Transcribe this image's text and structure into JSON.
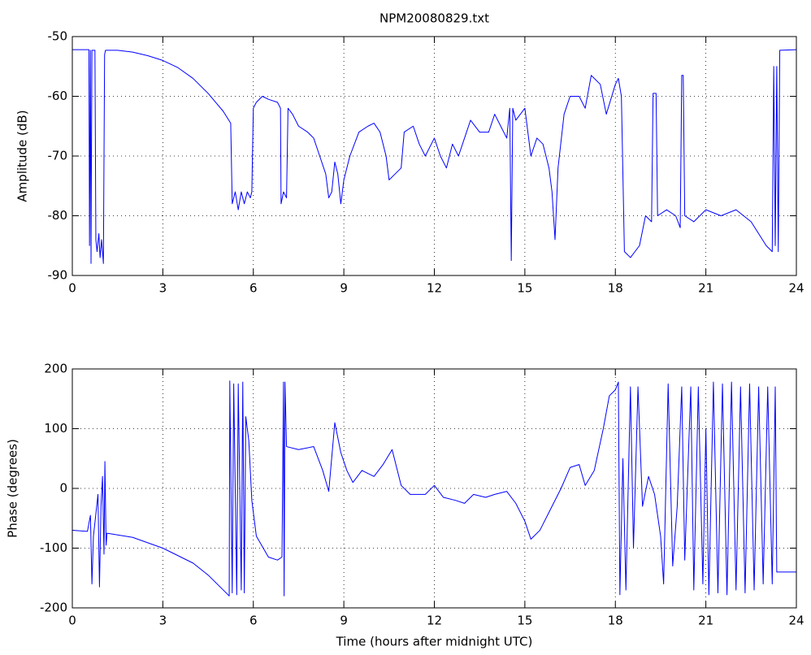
{
  "chart_data": [
    {
      "type": "line",
      "title": "NPM20080829.txt",
      "ylabel": "Amplitude (dB)",
      "color": "#0000ff",
      "grid": true,
      "xlim": [
        0,
        24
      ],
      "xticks": [
        0,
        3,
        6,
        9,
        12,
        15,
        18,
        21,
        24
      ],
      "ylim": [
        -90,
        -50
      ],
      "yticks": [
        -90,
        -80,
        -70,
        -60,
        -50
      ],
      "x": [
        0,
        0.55,
        0.57,
        0.6,
        0.62,
        0.65,
        0.75,
        0.78,
        0.82,
        0.88,
        0.92,
        0.97,
        1.0,
        1.03,
        1.07,
        1.1,
        1.5,
        2.0,
        2.5,
        3.0,
        3.5,
        4.0,
        4.5,
        5.0,
        5.25,
        5.3,
        5.4,
        5.5,
        5.6,
        5.7,
        5.8,
        5.9,
        5.95,
        6.0,
        6.1,
        6.3,
        6.5,
        6.8,
        6.9,
        6.92,
        7.0,
        7.1,
        7.15,
        7.3,
        7.5,
        7.8,
        8.0,
        8.2,
        8.4,
        8.5,
        8.6,
        8.7,
        8.8,
        8.9,
        9.0,
        9.2,
        9.5,
        9.8,
        10.0,
        10.2,
        10.4,
        10.5,
        10.7,
        10.9,
        11.0,
        11.3,
        11.5,
        11.7,
        12.0,
        12.2,
        12.4,
        12.6,
        12.8,
        13.0,
        13.2,
        13.5,
        13.8,
        14.0,
        14.2,
        14.4,
        14.5,
        14.55,
        14.6,
        14.7,
        15.0,
        15.2,
        15.4,
        15.6,
        15.8,
        15.9,
        16.0,
        16.1,
        16.3,
        16.5,
        16.8,
        17.0,
        17.2,
        17.5,
        17.7,
        18.0,
        18.1,
        18.2,
        18.3,
        18.5,
        18.8,
        19.0,
        19.2,
        19.25,
        19.35,
        19.4,
        19.7,
        20.0,
        20.15,
        20.2,
        20.25,
        20.3,
        20.6,
        21.0,
        21.5,
        22.0,
        22.5,
        23.0,
        23.2,
        23.25,
        23.3,
        23.35,
        23.4,
        23.45,
        24
      ],
      "values": [
        -52.2,
        -52.2,
        -85,
        -52.3,
        -88,
        -52.3,
        -52.3,
        -84,
        -86,
        -83,
        -87,
        -84,
        -86,
        -88,
        -53,
        -52.3,
        -52.3,
        -52.6,
        -53.2,
        -54,
        -55.2,
        -57,
        -59.5,
        -62.5,
        -64.5,
        -78,
        -76,
        -79,
        -76,
        -78,
        -76,
        -77,
        -76,
        -62,
        -61,
        -60,
        -60.5,
        -61,
        -62,
        -78,
        -76,
        -77,
        -62,
        -63,
        -65,
        -66,
        -67,
        -70,
        -73,
        -77,
        -76,
        -71,
        -73,
        -78,
        -74,
        -70,
        -66,
        -65,
        -64.5,
        -66,
        -70,
        -74,
        -73,
        -72,
        -66,
        -65,
        -68,
        -70,
        -67,
        -70,
        -72,
        -68,
        -70,
        -67,
        -64,
        -66,
        -66,
        -63,
        -65,
        -67,
        -62,
        -87.5,
        -62,
        -64,
        -62,
        -70,
        -67,
        -68,
        -72,
        -76,
        -84,
        -72,
        -63,
        -60,
        -60,
        -62,
        -56.5,
        -58,
        -63,
        -58,
        -57,
        -60,
        -86,
        -87,
        -85,
        -80,
        -81,
        -59.5,
        -59.5,
        -80,
        -79,
        -80,
        -82,
        -56.5,
        -56.5,
        -80,
        -81,
        -79,
        -80,
        -79,
        -81,
        -85,
        -86,
        -55,
        -85,
        -55,
        -86,
        -52.3,
        -52.2
      ]
    },
    {
      "type": "line",
      "xlabel": "Time (hours after midnight UTC)",
      "ylabel": "Phase (degrees)",
      "color": "#0000ff",
      "grid": true,
      "xlim": [
        0,
        24
      ],
      "xticks": [
        0,
        3,
        6,
        9,
        12,
        15,
        18,
        21,
        24
      ],
      "ylim": [
        -200,
        200
      ],
      "yticks": [
        -200,
        -100,
        0,
        100,
        200
      ],
      "x": [
        0,
        0.5,
        0.6,
        0.65,
        0.7,
        0.85,
        0.9,
        0.95,
        1.0,
        1.05,
        1.08,
        1.12,
        1.15,
        2,
        3,
        4,
        4.5,
        5,
        5.2,
        5.22,
        5.3,
        5.35,
        5.45,
        5.5,
        5.6,
        5.65,
        5.7,
        5.75,
        5.85,
        5.95,
        6.1,
        6.5,
        6.8,
        6.95,
        7.0,
        7.02,
        7.05,
        7.1,
        7.5,
        8,
        8.3,
        8.5,
        8.7,
        8.9,
        9.1,
        9.3,
        9.6,
        10,
        10.3,
        10.6,
        10.9,
        11.2,
        11.7,
        12,
        12.3,
        12.7,
        13,
        13.3,
        13.7,
        14,
        14.4,
        14.7,
        15,
        15.2,
        15.5,
        15.8,
        16.2,
        16.5,
        16.8,
        17.0,
        17.3,
        17.6,
        17.8,
        18.0,
        18.1,
        18.15,
        18.25,
        18.35,
        18.5,
        18.6,
        18.75,
        18.9,
        19.1,
        19.3,
        19.5,
        19.6,
        19.75,
        19.9,
        20.05,
        20.2,
        20.3,
        20.5,
        20.6,
        20.75,
        20.9,
        21.0,
        21.1,
        21.25,
        21.4,
        21.55,
        21.7,
        21.85,
        22,
        22.15,
        22.3,
        22.45,
        22.6,
        22.75,
        22.9,
        23.05,
        23.2,
        23.3,
        23.35,
        24
      ],
      "values": [
        -70,
        -72,
        -45,
        -160,
        -80,
        -10,
        -165,
        -30,
        20,
        -110,
        45,
        -95,
        -75,
        -82,
        -100,
        -125,
        -145,
        -170,
        -180,
        180,
        -175,
        175,
        -178,
        175,
        -170,
        178,
        -175,
        120,
        80,
        -20,
        -80,
        -115,
        -120,
        -115,
        178,
        -180,
        178,
        70,
        65,
        70,
        30,
        -5,
        110,
        60,
        30,
        10,
        30,
        20,
        40,
        65,
        5,
        -10,
        -10,
        5,
        -15,
        -20,
        -25,
        -10,
        -15,
        -10,
        -5,
        -25,
        -55,
        -85,
        -70,
        -40,
        0,
        35,
        40,
        5,
        30,
        100,
        155,
        165,
        178,
        -178,
        50,
        -170,
        170,
        -100,
        170,
        -30,
        20,
        -10,
        -80,
        -160,
        175,
        -130,
        -30,
        170,
        -120,
        170,
        -170,
        170,
        -160,
        100,
        -178,
        178,
        -175,
        175,
        -178,
        178,
        -170,
        170,
        -175,
        175,
        -170,
        170,
        -160,
        170,
        -160,
        170,
        -140,
        -140
      ]
    }
  ]
}
